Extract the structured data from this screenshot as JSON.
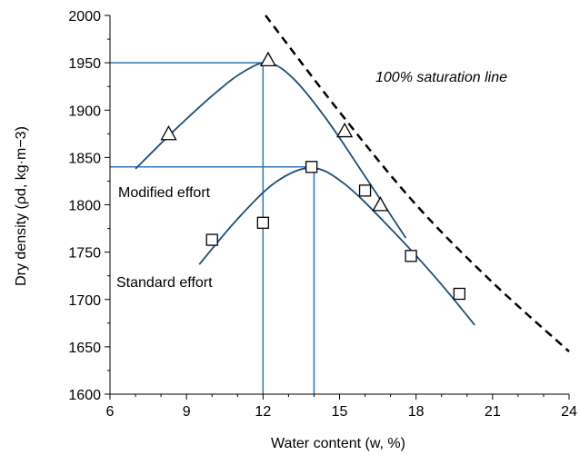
{
  "chart_data": {
    "type": "scatter",
    "xlabel": "Water content (w, %)",
    "ylabel": "Dry density (ρd, kg·m−3)",
    "xlim": [
      6,
      24
    ],
    "ylim": [
      1600,
      2000
    ],
    "xticks": [
      6,
      9,
      12,
      15,
      18,
      21,
      24
    ],
    "yticks": [
      1600,
      1650,
      1700,
      1750,
      1800,
      1850,
      1900,
      1950,
      2000
    ],
    "grid": false,
    "series": [
      {
        "name": "Modified effort",
        "marker": "triangle",
        "points": [
          {
            "x": 8.3,
            "y": 1875
          },
          {
            "x": 12.2,
            "y": 1953
          },
          {
            "x": 15.2,
            "y": 1878
          },
          {
            "x": 16.6,
            "y": 1800
          }
        ],
        "curve": [
          {
            "x": 7.0,
            "y": 1838
          },
          {
            "x": 8.5,
            "y": 1878
          },
          {
            "x": 10.0,
            "y": 1915
          },
          {
            "x": 11.2,
            "y": 1940
          },
          {
            "x": 12.2,
            "y": 1950
          },
          {
            "x": 13.2,
            "y": 1933
          },
          {
            "x": 14.5,
            "y": 1890
          },
          {
            "x": 16.0,
            "y": 1830
          },
          {
            "x": 17.6,
            "y": 1765
          }
        ],
        "optimum": {
          "x": 12,
          "y": 1950
        }
      },
      {
        "name": "Standard effort",
        "marker": "square",
        "points": [
          {
            "x": 10.0,
            "y": 1763
          },
          {
            "x": 12.0,
            "y": 1781
          },
          {
            "x": 13.9,
            "y": 1840
          },
          {
            "x": 16.0,
            "y": 1815
          },
          {
            "x": 17.8,
            "y": 1746
          },
          {
            "x": 19.7,
            "y": 1706
          }
        ],
        "curve": [
          {
            "x": 9.5,
            "y": 1737
          },
          {
            "x": 11.0,
            "y": 1785
          },
          {
            "x": 12.5,
            "y": 1824
          },
          {
            "x": 13.9,
            "y": 1839
          },
          {
            "x": 15.2,
            "y": 1822
          },
          {
            "x": 17.0,
            "y": 1775
          },
          {
            "x": 18.8,
            "y": 1722
          },
          {
            "x": 20.3,
            "y": 1673
          }
        ],
        "optimum": {
          "x": 14,
          "y": 1840
        }
      }
    ],
    "saturation_line": {
      "label": "100% saturation line",
      "style": "dashed",
      "points": [
        {
          "x": 12.1,
          "y": 2000
        },
        {
          "x": 15.0,
          "y": 1898
        },
        {
          "x": 18.0,
          "y": 1800
        },
        {
          "x": 21.0,
          "y": 1718
        },
        {
          "x": 24.0,
          "y": 1645
        }
      ]
    },
    "annotations": {
      "modified": "Modified effort",
      "standard": "Standard effort",
      "saturation": "100% saturation line"
    },
    "colors": {
      "curve": "#1f4e79",
      "guide": "#2e75b6",
      "marker": "#000000",
      "saturation": "#000000"
    }
  }
}
